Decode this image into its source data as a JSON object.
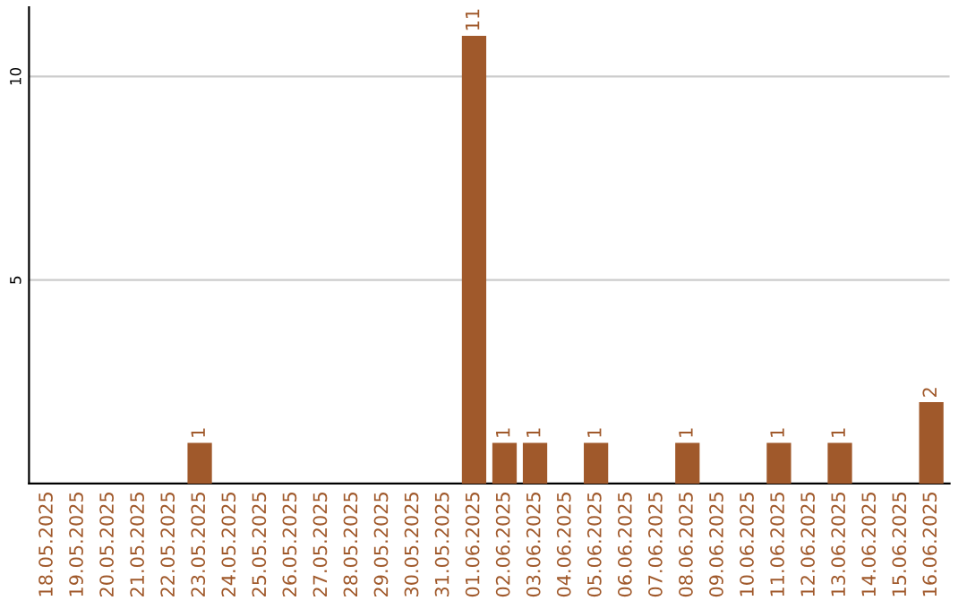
{
  "chart_data": {
    "type": "bar",
    "categories": [
      "18.05.2025",
      "19.05.2025",
      "20.05.2025",
      "21.05.2025",
      "22.05.2025",
      "23.05.2025",
      "24.05.2025",
      "25.05.2025",
      "26.05.2025",
      "27.05.2025",
      "28.05.2025",
      "29.05.2025",
      "30.05.2025",
      "31.05.2025",
      "01.06.2025",
      "02.06.2025",
      "03.06.2025",
      "04.06.2025",
      "05.06.2025",
      "06.06.2025",
      "07.06.2025",
      "08.06.2025",
      "09.06.2025",
      "10.06.2025",
      "11.06.2025",
      "12.06.2025",
      "13.06.2025",
      "14.06.2025",
      "15.06.2025",
      "16.06.2025"
    ],
    "values": [
      0,
      0,
      0,
      0,
      0,
      1,
      0,
      0,
      0,
      0,
      0,
      0,
      0,
      0,
      11,
      1,
      1,
      0,
      1,
      0,
      0,
      1,
      0,
      0,
      1,
      0,
      1,
      0,
      0,
      2
    ],
    "value_labels": [
      null,
      null,
      null,
      null,
      null,
      "1",
      null,
      null,
      null,
      null,
      null,
      null,
      null,
      null,
      "11",
      "1",
      "1",
      null,
      "1",
      null,
      null,
      "1",
      null,
      null,
      "1",
      null,
      "1",
      null,
      null,
      "2"
    ],
    "color": "#a0592b",
    "ylim": [
      0,
      11.7
    ],
    "yticks": [
      5,
      10
    ],
    "grid": "y"
  }
}
